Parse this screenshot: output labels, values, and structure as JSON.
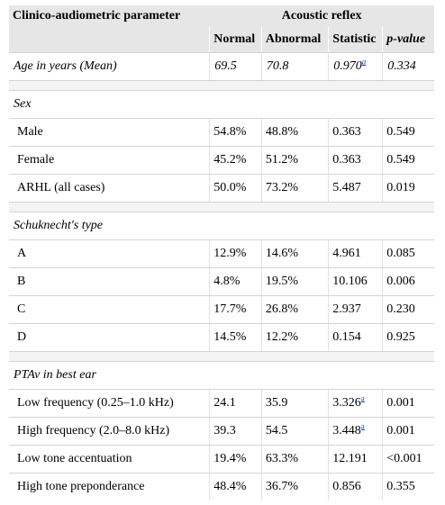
{
  "header": {
    "param_label": "Clinico-audiometric parameter",
    "group_label": "Acoustic reflex",
    "columns": [
      "Normal",
      "Abnormal",
      "Statistic",
      "p-value"
    ]
  },
  "age": {
    "label": "Age in years (Mean)",
    "normal": "69.5",
    "abnormal": "70.8",
    "statistic": "0.970",
    "statistic_note": "a",
    "p": "0.334"
  },
  "sex": {
    "title": "Sex",
    "rows": [
      {
        "label": "Male",
        "normal": "54.8%",
        "abnormal": "48.8%",
        "statistic": "0.363",
        "p": "0.549"
      },
      {
        "label": "Female",
        "normal": "45.2%",
        "abnormal": "51.2%",
        "statistic": "0.363",
        "p": "0.549"
      },
      {
        "label": "ARHL (all cases)",
        "normal": "50.0%",
        "abnormal": "73.2%",
        "statistic": "5.487",
        "p": "0.019"
      }
    ]
  },
  "schuknecht": {
    "title": "Schuknecht's type",
    "rows": [
      {
        "label": "A",
        "normal": "12.9%",
        "abnormal": "14.6%",
        "statistic": "4.961",
        "p": "0.085"
      },
      {
        "label": "B",
        "normal": "4.8%",
        "abnormal": "19.5%",
        "statistic": "10.106",
        "p": "0.006"
      },
      {
        "label": "C",
        "normal": "17.7%",
        "abnormal": "26.8%",
        "statistic": "2.937",
        "p": "0.230"
      },
      {
        "label": "D",
        "normal": "14.5%",
        "abnormal": "12.2%",
        "statistic": "0.154",
        "p": "0.925"
      }
    ]
  },
  "ptav": {
    "title": "PTAv in best ear",
    "rows": [
      {
        "label": "Low frequency (0.25–1.0 kHz)",
        "normal": "24.1",
        "abnormal": "35.9",
        "statistic": "3.326",
        "statistic_note": "a",
        "p": "0.001"
      },
      {
        "label": "High frequency (2.0–8.0 kHz)",
        "normal": "39.3",
        "abnormal": "54.5",
        "statistic": "3.448",
        "statistic_note": "a",
        "p": "0.001"
      },
      {
        "label": "Low tone accentuation",
        "normal": "19.4%",
        "abnormal": "63.3%",
        "statistic": "12.191",
        "p": "<0.001"
      },
      {
        "label": "High tone preponderance",
        "normal": "48.4%",
        "abnormal": "36.7%",
        "statistic": "0.856",
        "p": "0.355"
      }
    ]
  }
}
